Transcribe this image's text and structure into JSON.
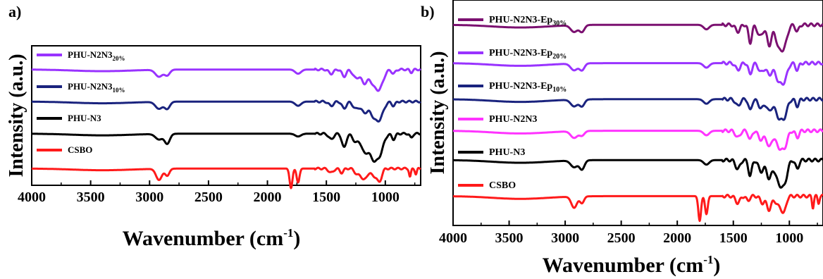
{
  "figure": {
    "width_note": ""
  },
  "chart_data": [
    {
      "type": "line",
      "panel_label": "a)",
      "xlabel": "Wavenumber (cm",
      "xlabel_sup": "-1",
      "xlabel_end": ")",
      "ylabel": "Intensity (a.u.)",
      "xlim": [
        4000,
        700
      ],
      "x_reversed": true,
      "xticks": [
        4000,
        3500,
        3000,
        2500,
        2000,
        1500,
        1000
      ],
      "grid": false,
      "series": [
        {
          "name": "PHU-N2N3",
          "name_sub": "20%",
          "color": "#9933ff",
          "baseline": 0.83,
          "bands": [
            [
              2920,
              0.05,
              30
            ],
            [
              2850,
              0.04,
              22
            ],
            [
              1740,
              0.03,
              25
            ],
            [
              1460,
              0.03,
              20
            ],
            [
              1350,
              0.05,
              18
            ],
            [
              1250,
              0.06,
              25
            ],
            [
              1180,
              0.09,
              25
            ],
            [
              1090,
              0.11,
              40
            ],
            [
              1040,
              0.08,
              30
            ],
            [
              930,
              0.03,
              15
            ],
            [
              780,
              0.02,
              12
            ]
          ]
        },
        {
          "name": "PHU-N2N3",
          "name_sub": "10%",
          "color": "#1a237e",
          "baseline": 0.6,
          "bands": [
            [
              2920,
              0.05,
              30
            ],
            [
              2850,
              0.05,
              22
            ],
            [
              1740,
              0.03,
              25
            ],
            [
              1460,
              0.03,
              20
            ],
            [
              1350,
              0.05,
              18
            ],
            [
              1250,
              0.05,
              25
            ],
            [
              1180,
              0.07,
              25
            ],
            [
              1090,
              0.11,
              40
            ],
            [
              1040,
              0.07,
              30
            ],
            [
              930,
              0.03,
              15
            ]
          ]
        },
        {
          "name": "PHU-N3",
          "name_sub": "",
          "color": "#000000",
          "baseline": 0.37,
          "bands": [
            [
              2920,
              0.04,
              30
            ],
            [
              2850,
              0.07,
              22
            ],
            [
              1740,
              0.02,
              25
            ],
            [
              1460,
              0.04,
              20
            ],
            [
              1350,
              0.1,
              18
            ],
            [
              1250,
              0.06,
              25
            ],
            [
              1180,
              0.11,
              25
            ],
            [
              1100,
              0.18,
              40
            ],
            [
              1040,
              0.09,
              30
            ],
            [
              930,
              0.04,
              15
            ],
            [
              780,
              0.03,
              12
            ]
          ]
        },
        {
          "name": "CSBO",
          "name_sub": "",
          "color": "#ff1a1a",
          "baseline": 0.12,
          "bands": [
            [
              2920,
              0.08,
              25
            ],
            [
              2850,
              0.05,
              18
            ],
            [
              1800,
              0.14,
              12
            ],
            [
              1740,
              0.1,
              12
            ],
            [
              1460,
              0.03,
              20
            ],
            [
              1370,
              0.03,
              15
            ],
            [
              1240,
              0.04,
              20
            ],
            [
              1180,
              0.08,
              25
            ],
            [
              1100,
              0.05,
              25
            ],
            [
              1050,
              0.09,
              20
            ],
            [
              790,
              0.06,
              8
            ],
            [
              740,
              0.04,
              8
            ]
          ]
        }
      ]
    },
    {
      "type": "line",
      "panel_label": "b)",
      "xlabel": "Wavenumber (cm",
      "xlabel_sup": "-1",
      "xlabel_end": ")",
      "ylabel": "Intensity (a.u.)",
      "xlim": [
        4000,
        700
      ],
      "x_reversed": true,
      "xticks": [
        4000,
        3500,
        3000,
        2500,
        2000,
        1500,
        1000
      ],
      "grid": false,
      "series": [
        {
          "name": "PHU-N2N3-Ep",
          "name_sub": "30%",
          "color": "#7b1070",
          "baseline": 0.89,
          "bands": [
            [
              2920,
              0.03,
              30
            ],
            [
              2850,
              0.03,
              22
            ],
            [
              1740,
              0.02,
              25
            ],
            [
              1460,
              0.03,
              20
            ],
            [
              1350,
              0.08,
              15
            ],
            [
              1260,
              0.05,
              25
            ],
            [
              1180,
              0.09,
              20
            ],
            [
              1090,
              0.1,
              30
            ],
            [
              1040,
              0.07,
              25
            ],
            [
              930,
              0.03,
              15
            ]
          ]
        },
        {
          "name": "PHU-N2N3-Ep",
          "name_sub": "20%",
          "color": "#9933ff",
          "baseline": 0.72,
          "bands": [
            [
              2920,
              0.03,
              30
            ],
            [
              2850,
              0.03,
              22
            ],
            [
              1740,
              0.02,
              25
            ],
            [
              1460,
              0.03,
              20
            ],
            [
              1350,
              0.05,
              15
            ],
            [
              1250,
              0.04,
              25
            ],
            [
              1180,
              0.05,
              20
            ],
            [
              1090,
              0.08,
              35
            ],
            [
              1040,
              0.05,
              25
            ],
            [
              930,
              0.03,
              15
            ]
          ]
        },
        {
          "name": "PHU-N2N3-Ep",
          "name_sub": "10%",
          "color": "#1a237e",
          "baseline": 0.56,
          "bands": [
            [
              2920,
              0.03,
              30
            ],
            [
              2850,
              0.03,
              22
            ],
            [
              1740,
              0.02,
              25
            ],
            [
              1460,
              0.03,
              20
            ],
            [
              1350,
              0.05,
              15
            ],
            [
              1250,
              0.04,
              25
            ],
            [
              1180,
              0.05,
              20
            ],
            [
              1090,
              0.08,
              35
            ],
            [
              1040,
              0.05,
              25
            ],
            [
              930,
              0.03,
              15
            ]
          ]
        },
        {
          "name": "PHU-N2N3",
          "name_sub": "",
          "color": "#ff33ff",
          "baseline": 0.42,
          "bands": [
            [
              2920,
              0.03,
              30
            ],
            [
              2850,
              0.02,
              22
            ],
            [
              1740,
              0.02,
              25
            ],
            [
              1460,
              0.03,
              20
            ],
            [
              1350,
              0.04,
              15
            ],
            [
              1250,
              0.04,
              25
            ],
            [
              1180,
              0.07,
              20
            ],
            [
              1090,
              0.07,
              35
            ],
            [
              1040,
              0.05,
              25
            ],
            [
              930,
              0.03,
              15
            ]
          ]
        },
        {
          "name": "PHU-N3",
          "name_sub": "",
          "color": "#000000",
          "baseline": 0.29,
          "bands": [
            [
              2920,
              0.03,
              30
            ],
            [
              2850,
              0.04,
              22
            ],
            [
              1740,
              0.02,
              25
            ],
            [
              1460,
              0.04,
              20
            ],
            [
              1350,
              0.07,
              15
            ],
            [
              1250,
              0.05,
              25
            ],
            [
              1180,
              0.08,
              20
            ],
            [
              1090,
              0.1,
              35
            ],
            [
              1040,
              0.07,
              25
            ],
            [
              930,
              0.04,
              15
            ]
          ]
        },
        {
          "name": "CSBO",
          "name_sub": "",
          "color": "#ff1a1a",
          "baseline": 0.13,
          "bands": [
            [
              2920,
              0.05,
              25
            ],
            [
              2850,
              0.03,
              18
            ],
            [
              1800,
              0.11,
              12
            ],
            [
              1740,
              0.08,
              12
            ],
            [
              1460,
              0.03,
              20
            ],
            [
              1370,
              0.02,
              15
            ],
            [
              1240,
              0.03,
              20
            ],
            [
              1180,
              0.06,
              20
            ],
            [
              1100,
              0.04,
              25
            ],
            [
              1050,
              0.07,
              20
            ],
            [
              790,
              0.05,
              8
            ],
            [
              740,
              0.03,
              8
            ]
          ]
        }
      ]
    }
  ]
}
